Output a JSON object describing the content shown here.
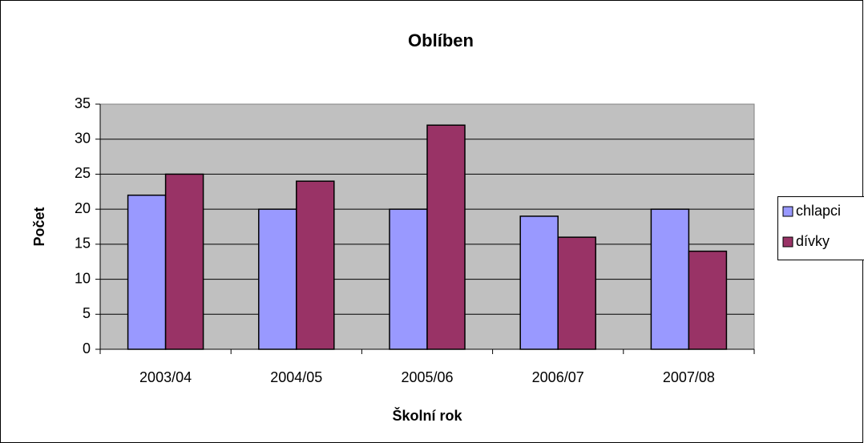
{
  "chart_data": {
    "type": "bar",
    "title": "Oblíben",
    "x_label": "Školní rok",
    "y_label": "Počet",
    "categories": [
      "2003/04",
      "2004/05",
      "2005/06",
      "2006/07",
      "2007/08"
    ],
    "series": [
      {
        "name": "chlapci",
        "color": "#9999ff",
        "values": [
          22,
          20,
          20,
          19,
          20
        ]
      },
      {
        "name": "dívky",
        "color": "#993366",
        "values": [
          25,
          24,
          32,
          16,
          14
        ]
      }
    ],
    "ylim": [
      0,
      35
    ],
    "yticks": [
      0,
      5,
      10,
      15,
      20,
      25,
      30,
      35
    ],
    "grid": true,
    "legend": "right"
  }
}
